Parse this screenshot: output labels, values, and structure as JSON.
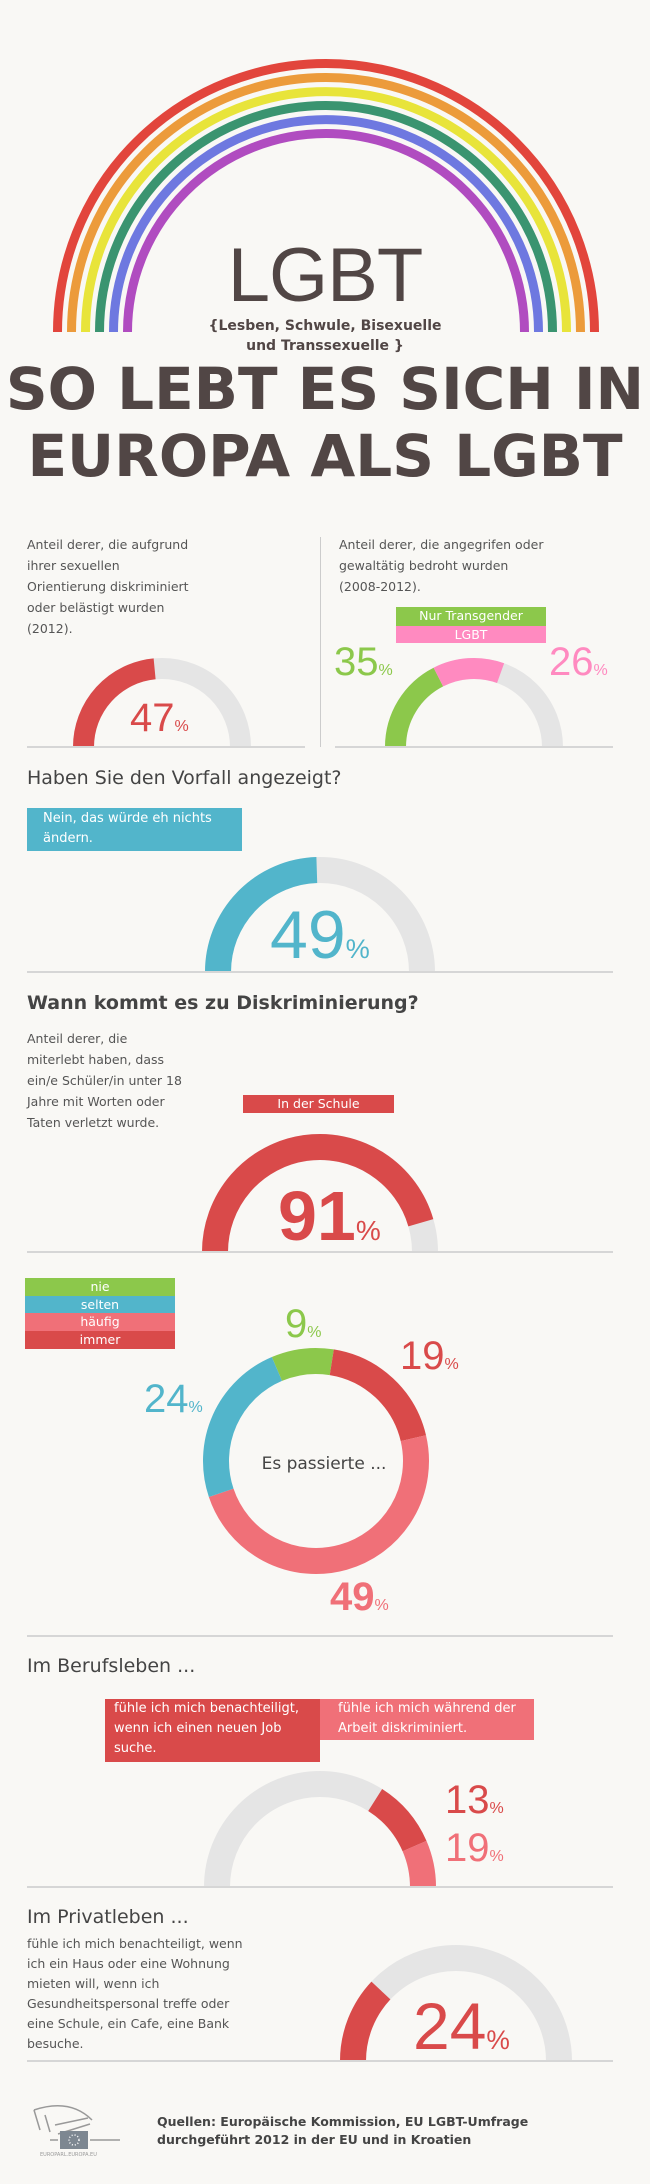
{
  "colors": {
    "red": "#d94a4a",
    "pink": "#ff8ac0",
    "green": "#8cc84b",
    "blue": "#52b5cb",
    "gray": "#e5e5e5",
    "lightred": "#f07078",
    "rainbow": [
      "#e2453c",
      "#ec9b3b",
      "#e8e43a",
      "#3a9470",
      "#6e78e0",
      "#b04cc0"
    ]
  },
  "header": {
    "logo": "LGBT",
    "subtitle_1": "{Lesben, Schwule, Bisexuelle",
    "subtitle_2": "und Transsexuelle }",
    "title_1": "SO LEBT ES SICH IN",
    "title_2": "EUROPA ALS LGBT"
  },
  "s1": {
    "left_text": [
      "Anteil derer, die aufgrund",
      "ihrer sexuellen",
      "Orientierung diskriminiert",
      "oder belästigt wurden",
      "(2012)."
    ],
    "left_value": "47",
    "right_text": [
      "Anteil derer, die angegrifen oder",
      "gewaltätig bedroht wurden",
      "(2008-2012)."
    ],
    "legend_trans": "Nur Transgender",
    "legend_lgbt": "LGBT",
    "trans_value": "35",
    "lgbt_value": "26",
    "pct": "%"
  },
  "s2": {
    "heading": "Haben Sie den Vorfall angezeigt?",
    "box": [
      "Nein, das würde eh nichts",
      "ändern."
    ],
    "value": "49"
  },
  "s3": {
    "heading": "Wann kommt es zu Diskriminierung?",
    "text": [
      "Anteil derer, die",
      "miterlebt haben, dass",
      "ein/e Schüler/in unter 18",
      "Jahre mit Worten oder",
      "Taten verletzt wurde."
    ],
    "tag": "In der Schule",
    "value": "91"
  },
  "s4": {
    "legend": [
      "nie",
      "selten",
      "häufig",
      "immer"
    ],
    "center": "Es passierte ...",
    "values": {
      "nie": "9",
      "immer": "19",
      "haeufig": "49",
      "selten": "24"
    }
  },
  "s5": {
    "heading": "Im Berufsleben ...",
    "box1": [
      "fühle ich mich benachteiligt,",
      "wenn ich einen neuen Job",
      "suche."
    ],
    "box2": [
      "fühle ich mich während der",
      "Arbeit diskriminiert."
    ],
    "value1": "13",
    "value2": "19"
  },
  "s6": {
    "heading": "Im Privatleben ...",
    "text": [
      "fühle ich mich benachteiligt, wenn",
      "ich ein Haus oder eine Wohnung",
      "mieten will, wenn ich",
      "Gesundheitspersonal treffe oder",
      "eine Schule, ein Cafe, eine Bank",
      "besuche."
    ],
    "value": "24"
  },
  "footer": {
    "logo_text": "EUROPARL.EUROPA.EU",
    "source_1": "Quellen: Europäische Kommission, EU LGBT-Umfrage",
    "source_2": "durchgeführt 2012 in der EU und in Kroatien"
  },
  "chart_data": [
    {
      "type": "gauge",
      "name": "diskriminiert-2012",
      "values": [
        47
      ]
    },
    {
      "type": "gauge",
      "name": "angegriffen",
      "series": [
        {
          "name": "Nur Transgender",
          "value": 35
        },
        {
          "name": "LGBT",
          "value": 26
        }
      ]
    },
    {
      "type": "gauge",
      "name": "nicht-angezeigt",
      "values": [
        49
      ]
    },
    {
      "type": "gauge",
      "name": "schule",
      "values": [
        91
      ]
    },
    {
      "type": "pie",
      "name": "es-passierte",
      "categories": [
        "nie",
        "immer",
        "häufig",
        "selten"
      ],
      "values": [
        9,
        19,
        49,
        24
      ]
    },
    {
      "type": "gauge",
      "name": "berufsleben",
      "series": [
        {
          "name": "neuer Job",
          "value": 13
        },
        {
          "name": "während der Arbeit",
          "value": 19
        }
      ]
    },
    {
      "type": "gauge",
      "name": "privatleben",
      "values": [
        24
      ]
    }
  ]
}
